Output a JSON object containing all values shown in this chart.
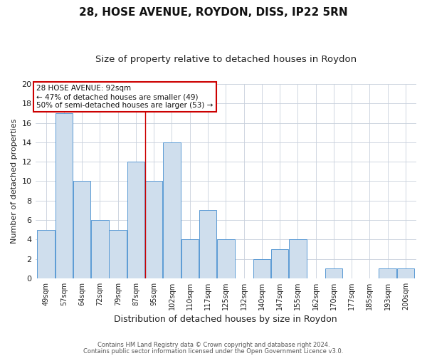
{
  "title": "28, HOSE AVENUE, ROYDON, DISS, IP22 5RN",
  "subtitle": "Size of property relative to detached houses in Roydon",
  "xlabel": "Distribution of detached houses by size in Roydon",
  "ylabel": "Number of detached properties",
  "footer_line1": "Contains HM Land Registry data © Crown copyright and database right 2024.",
  "footer_line2": "Contains public sector information licensed under the Open Government Licence v3.0.",
  "bar_labels": [
    "49sqm",
    "57sqm",
    "64sqm",
    "72sqm",
    "79sqm",
    "87sqm",
    "95sqm",
    "102sqm",
    "110sqm",
    "117sqm",
    "125sqm",
    "132sqm",
    "140sqm",
    "147sqm",
    "155sqm",
    "162sqm",
    "170sqm",
    "177sqm",
    "185sqm",
    "193sqm",
    "200sqm"
  ],
  "bar_values": [
    5,
    17,
    10,
    6,
    5,
    12,
    10,
    14,
    4,
    7,
    4,
    0,
    2,
    3,
    4,
    0,
    1,
    0,
    0,
    1,
    1
  ],
  "bar_color": "#cfdeed",
  "bar_edge_color": "#5b9bd5",
  "ylim": [
    0,
    20
  ],
  "yticks": [
    0,
    2,
    4,
    6,
    8,
    10,
    12,
    14,
    16,
    18,
    20
  ],
  "annotation_title": "28 HOSE AVENUE: 92sqm",
  "annotation_line1": "← 47% of detached houses are smaller (49)",
  "annotation_line2": "50% of semi-detached houses are larger (53) →",
  "annotation_box_color": "#ffffff",
  "annotation_box_edge": "#cc0000",
  "red_line_color": "#cc0000",
  "background_color": "#ffffff",
  "grid_color": "#c8d0dc",
  "title_fontsize": 11,
  "subtitle_fontsize": 9.5,
  "ylabel_fontsize": 8,
  "xlabel_fontsize": 9
}
